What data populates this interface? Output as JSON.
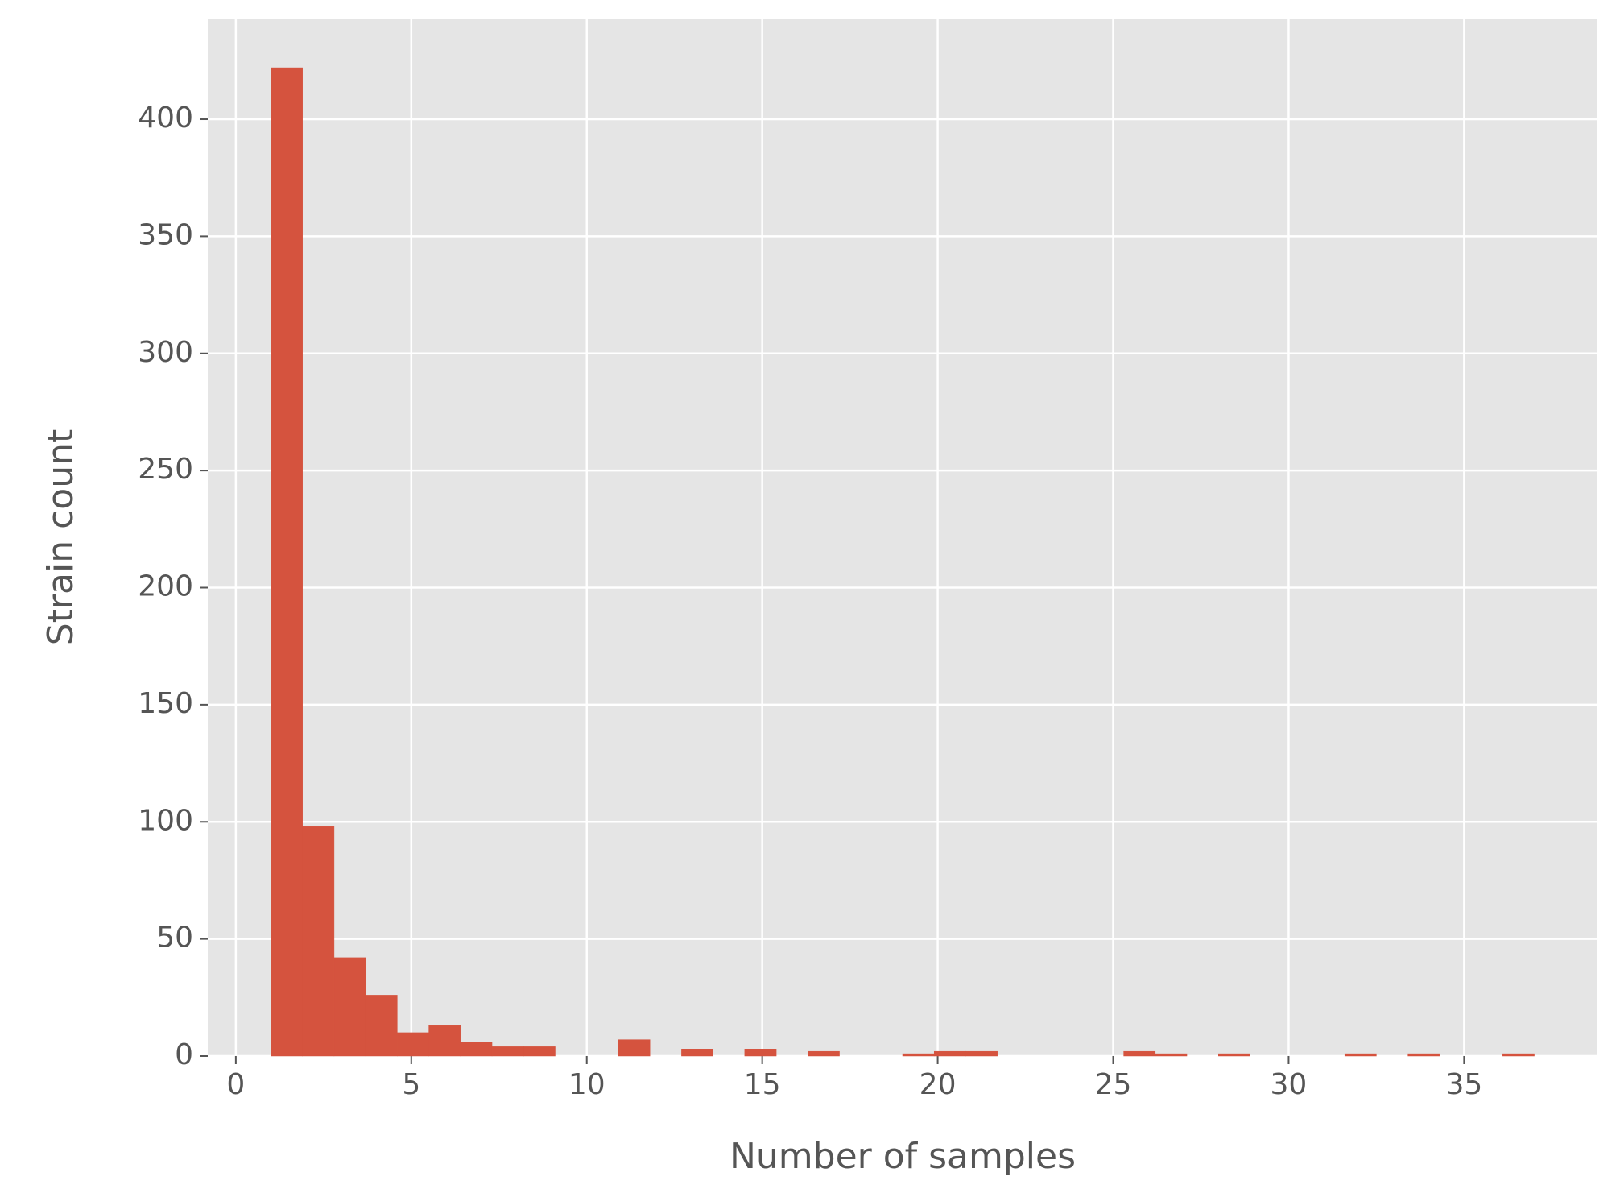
{
  "chart_data": {
    "type": "histogram",
    "xlabel": "Number of samples",
    "ylabel": "Strain count",
    "bins": [
      1,
      1.9,
      2.8,
      3.7,
      4.6,
      5.5,
      6.4,
      7.3,
      8.2,
      9.1,
      10,
      10.9,
      11.8,
      12.7,
      13.6,
      14.5,
      15.4,
      16.3,
      17.2,
      18.1,
      19,
      19.9,
      20.8,
      21.7,
      22.6,
      23.5,
      24.4,
      25.3,
      26.2,
      27.1,
      28,
      28.9,
      29.8,
      30.7,
      31.6,
      32.5,
      33.4,
      34.3,
      35.2,
      36.1,
      37
    ],
    "values": [
      422,
      98,
      42,
      26,
      10,
      13,
      6,
      4,
      4,
      0,
      0,
      7,
      0,
      3,
      0,
      3,
      0,
      2,
      0,
      0,
      1,
      2,
      2,
      0,
      0,
      0,
      0,
      2,
      1,
      0,
      1,
      0,
      0,
      0,
      1,
      0,
      1,
      0,
      0,
      1
    ],
    "color": "#d5533e",
    "xlim": [
      -0.8,
      38.8
    ],
    "ylim": [
      0,
      443
    ],
    "xticks": [
      0,
      5,
      10,
      15,
      20,
      25,
      30,
      35
    ],
    "yticks": [
      0,
      50,
      100,
      150,
      200,
      250,
      300,
      350,
      400
    ],
    "grid": true
  }
}
